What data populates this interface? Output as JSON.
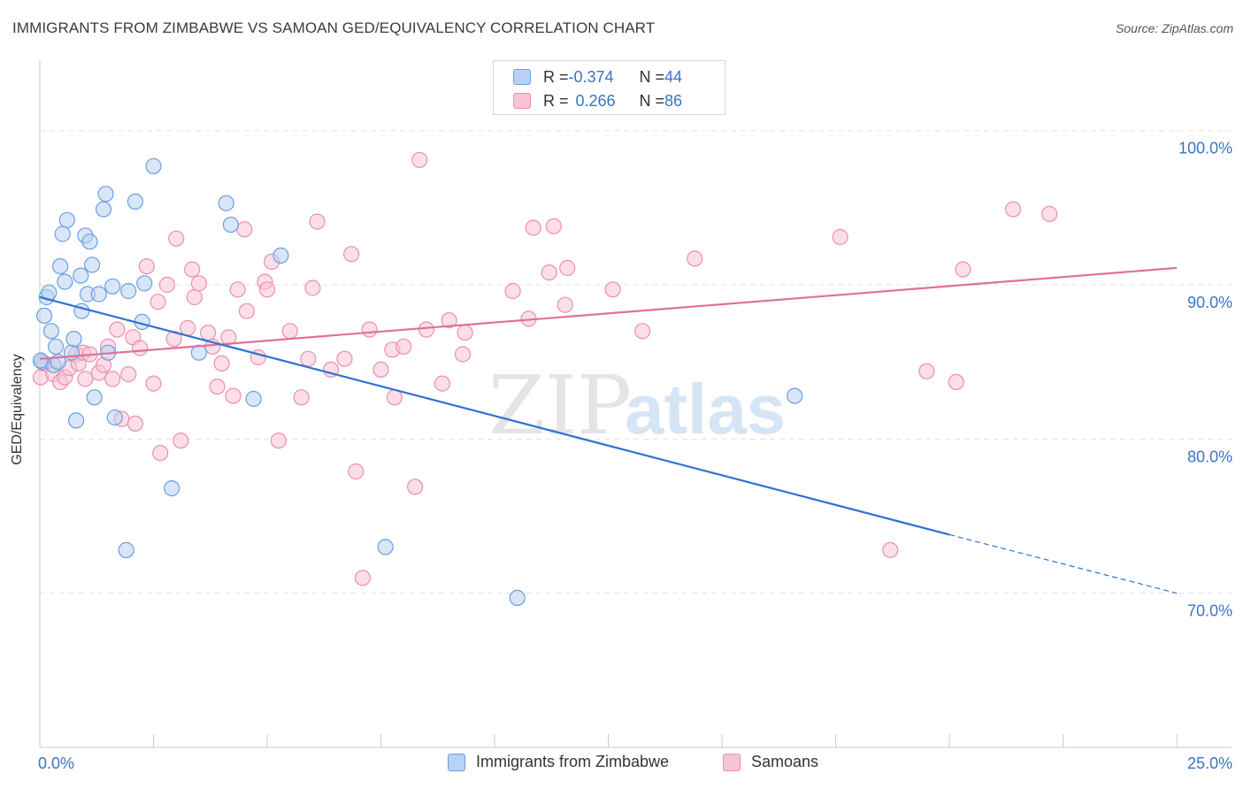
{
  "title": "IMMIGRANTS FROM ZIMBABWE VS SAMOAN GED/EQUIVALENCY CORRELATION CHART",
  "source": "Source: ZipAtlas.com",
  "watermark": {
    "zip": "ZIP",
    "atlas": "atlas"
  },
  "legend": {
    "rows": [
      {
        "r_label": "R = ",
        "r_value": "-0.374",
        "n_label": "N = ",
        "n_value": "44"
      },
      {
        "r_label": "R = ",
        "r_value": "0.266",
        "n_label": "N = ",
        "n_value": "86"
      }
    ]
  },
  "chart_data": {
    "type": "scatter",
    "title": "IMMIGRANTS FROM ZIMBABWE VS SAMOAN GED/EQUIVALENCY CORRELATION CHART",
    "xlabel": "",
    "ylabel": "GED/Equivalency",
    "xlim": [
      0,
      25
    ],
    "ylim": [
      60,
      104
    ],
    "x_tick_labels": [
      "0.0%",
      "25.0%"
    ],
    "y_ticks": [
      70,
      80,
      90,
      100
    ],
    "y_tick_labels": [
      "70.0%",
      "80.0%",
      "90.0%",
      "100.0%"
    ],
    "grid": true,
    "legend_position": "bottom",
    "series": [
      {
        "name": "Immigrants from Zimbabwe",
        "color": "#6a9fe0",
        "fill": "#b9d1f3",
        "line_color": "#2e73d2",
        "r": -0.374,
        "n": 44,
        "trend": {
          "x0": 0.0,
          "y0": 89.2,
          "x1": 20.0,
          "y1": 73.8,
          "dash_x_end": 25.0,
          "dash_y_end": 70.0
        },
        "points": [
          [
            0.05,
            85.0
          ],
          [
            0.1,
            88.0
          ],
          [
            0.15,
            89.2
          ],
          [
            0.2,
            89.5
          ],
          [
            0.25,
            87.0
          ],
          [
            0.3,
            84.8
          ],
          [
            0.35,
            86.0
          ],
          [
            0.4,
            85.0
          ],
          [
            0.45,
            91.2
          ],
          [
            0.5,
            93.3
          ],
          [
            0.55,
            90.2
          ],
          [
            0.6,
            94.2
          ],
          [
            0.7,
            85.6
          ],
          [
            0.75,
            86.5
          ],
          [
            0.8,
            81.2
          ],
          [
            0.9,
            90.6
          ],
          [
            0.92,
            88.3
          ],
          [
            1.0,
            93.2
          ],
          [
            1.05,
            89.4
          ],
          [
            1.1,
            92.8
          ],
          [
            1.15,
            91.3
          ],
          [
            1.2,
            82.7
          ],
          [
            1.3,
            89.4
          ],
          [
            1.4,
            94.9
          ],
          [
            1.45,
            95.9
          ],
          [
            1.5,
            85.6
          ],
          [
            1.6,
            89.9
          ],
          [
            1.65,
            81.4
          ],
          [
            1.9,
            72.8
          ],
          [
            1.95,
            89.6
          ],
          [
            2.1,
            95.4
          ],
          [
            2.25,
            87.6
          ],
          [
            2.3,
            90.1
          ],
          [
            2.5,
            97.7
          ],
          [
            2.9,
            76.8
          ],
          [
            3.5,
            85.6
          ],
          [
            4.1,
            95.3
          ],
          [
            4.2,
            93.9
          ],
          [
            4.7,
            82.6
          ],
          [
            5.3,
            91.9
          ],
          [
            7.6,
            73.0
          ],
          [
            10.5,
            69.7
          ],
          [
            16.6,
            82.8
          ],
          [
            0.02,
            85.1
          ]
        ]
      },
      {
        "name": "Samoans",
        "color": "#ec8fae",
        "fill": "#f7c3d5",
        "line_color": "#e0709a",
        "r": 0.266,
        "n": 86,
        "trend": {
          "x0": 0.0,
          "y0": 85.2,
          "x1": 25.0,
          "y1": 91.1
        },
        "points": [
          [
            0.02,
            84.0
          ],
          [
            0.1,
            84.9
          ],
          [
            0.3,
            84.2
          ],
          [
            0.45,
            83.7
          ],
          [
            0.55,
            84.0
          ],
          [
            0.65,
            84.6
          ],
          [
            0.8,
            85.5
          ],
          [
            0.85,
            84.9
          ],
          [
            0.95,
            85.6
          ],
          [
            1.0,
            83.9
          ],
          [
            1.1,
            85.5
          ],
          [
            1.3,
            84.3
          ],
          [
            1.4,
            84.8
          ],
          [
            1.5,
            86.0
          ],
          [
            1.6,
            83.9
          ],
          [
            1.7,
            87.1
          ],
          [
            1.8,
            81.3
          ],
          [
            1.95,
            84.2
          ],
          [
            2.05,
            86.6
          ],
          [
            2.1,
            81.0
          ],
          [
            2.2,
            85.9
          ],
          [
            2.35,
            91.2
          ],
          [
            2.5,
            83.6
          ],
          [
            2.6,
            88.9
          ],
          [
            2.65,
            79.1
          ],
          [
            2.8,
            90.0
          ],
          [
            2.95,
            86.5
          ],
          [
            3.0,
            93.0
          ],
          [
            3.1,
            79.9
          ],
          [
            3.25,
            87.2
          ],
          [
            3.35,
            91.0
          ],
          [
            3.4,
            89.2
          ],
          [
            3.5,
            90.1
          ],
          [
            3.7,
            86.9
          ],
          [
            3.8,
            86.0
          ],
          [
            3.9,
            83.4
          ],
          [
            4.0,
            84.9
          ],
          [
            4.15,
            86.6
          ],
          [
            4.25,
            82.8
          ],
          [
            4.35,
            89.7
          ],
          [
            4.5,
            93.6
          ],
          [
            4.55,
            88.3
          ],
          [
            4.8,
            85.3
          ],
          [
            4.95,
            90.2
          ],
          [
            5.0,
            89.7
          ],
          [
            5.1,
            91.5
          ],
          [
            5.25,
            79.9
          ],
          [
            5.5,
            87.0
          ],
          [
            5.75,
            82.7
          ],
          [
            5.9,
            85.2
          ],
          [
            6.0,
            89.8
          ],
          [
            6.1,
            94.1
          ],
          [
            6.4,
            84.5
          ],
          [
            6.7,
            85.2
          ],
          [
            6.85,
            92.0
          ],
          [
            6.95,
            77.9
          ],
          [
            7.1,
            71.0
          ],
          [
            7.25,
            87.1
          ],
          [
            7.5,
            84.5
          ],
          [
            7.75,
            85.8
          ],
          [
            7.8,
            82.7
          ],
          [
            8.0,
            86.0
          ],
          [
            8.25,
            76.9
          ],
          [
            8.35,
            98.1
          ],
          [
            8.5,
            87.1
          ],
          [
            8.85,
            83.6
          ],
          [
            9.0,
            87.7
          ],
          [
            9.3,
            85.5
          ],
          [
            9.35,
            86.9
          ],
          [
            10.4,
            89.6
          ],
          [
            10.75,
            87.8
          ],
          [
            10.85,
            93.7
          ],
          [
            11.2,
            90.8
          ],
          [
            11.3,
            93.8
          ],
          [
            11.55,
            88.7
          ],
          [
            11.6,
            91.1
          ],
          [
            12.6,
            89.7
          ],
          [
            13.25,
            87.0
          ],
          [
            14.4,
            91.7
          ],
          [
            17.6,
            93.1
          ],
          [
            18.7,
            72.8
          ],
          [
            19.5,
            84.4
          ],
          [
            20.15,
            83.7
          ],
          [
            20.3,
            91.0
          ],
          [
            21.4,
            94.9
          ],
          [
            22.2,
            94.6
          ]
        ]
      }
    ]
  }
}
